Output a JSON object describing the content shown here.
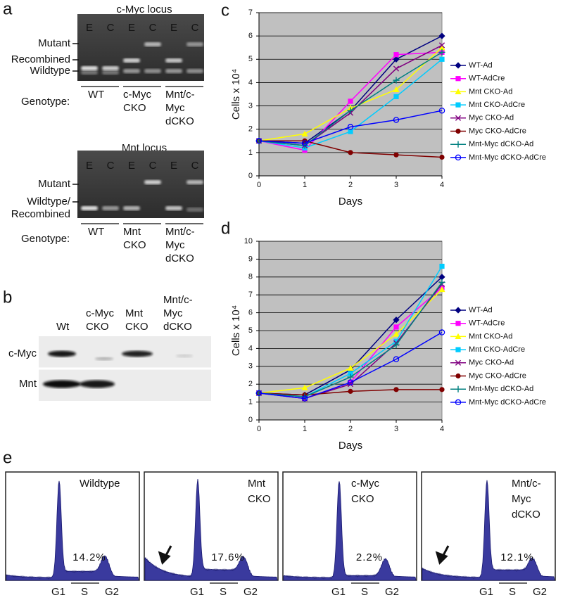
{
  "panel_labels": [
    "a",
    "b",
    "c",
    "d",
    "e"
  ],
  "panel_a": {
    "gels": [
      {
        "title": "c-Myc locus",
        "lanes": [
          "E",
          "C",
          "E",
          "C",
          "E",
          "C"
        ],
        "band_labels": [
          [
            "Mutant"
          ],
          [
            "Recombined"
          ],
          [
            "Wildtype"
          ]
        ],
        "genotype_label": "Genotype:",
        "genotypes": [
          [
            "WT"
          ],
          [
            "c-Myc",
            "CKO"
          ],
          [
            "Mnt/c-",
            "Myc",
            "dCKO"
          ]
        ]
      },
      {
        "title": "Mnt locus",
        "lanes": [
          "E",
          "C",
          "E",
          "C",
          "E",
          "C"
        ],
        "band_labels": [
          [
            "Mutant"
          ],
          [
            "Wildtype/",
            "Recombined"
          ]
        ],
        "genotype_label": "Genotype:",
        "genotypes": [
          [
            "WT"
          ],
          [
            "Mnt",
            "CKO"
          ],
          [
            "Mnt/c-",
            "Myc",
            "dCKO"
          ]
        ]
      }
    ]
  },
  "panel_b": {
    "lanes": [
      [
        "Wt"
      ],
      [
        "c-Myc",
        "CKO"
      ],
      [
        "Mnt",
        "CKO"
      ],
      [
        "Mnt/c-",
        "Myc",
        "dCKO"
      ]
    ],
    "rows": [
      "c-Myc",
      "Mnt"
    ]
  },
  "chart_data": [
    {
      "type": "line",
      "x_label": "Days",
      "y_label": "Cells x 10⁴",
      "x": [
        0,
        1,
        2,
        3,
        4
      ],
      "xlim": [
        0,
        4
      ],
      "xticks": [
        0,
        1,
        2,
        3,
        4
      ],
      "ylim": [
        0,
        7
      ],
      "yticks": [
        0,
        1,
        2,
        3,
        4,
        5,
        6,
        7
      ],
      "grid": true,
      "background": "#c0c0c0",
      "legend": "right",
      "series": [
        {
          "name": "WT-Ad",
          "color": "#000080",
          "marker": "diamond",
          "values": [
            1.5,
            1.4,
            2.8,
            5.0,
            6.0
          ]
        },
        {
          "name": "WT-AdCre",
          "color": "#ff00ff",
          "marker": "square",
          "values": [
            1.5,
            1.1,
            3.2,
            5.2,
            5.3
          ]
        },
        {
          "name": "Mnt CKO-Ad",
          "color": "#ffff00",
          "marker": "triangle",
          "values": [
            1.5,
            1.8,
            2.9,
            3.7,
            5.5
          ]
        },
        {
          "name": "Mnt CKO-AdCre",
          "color": "#00ccff",
          "marker": "square",
          "values": [
            1.5,
            1.2,
            1.9,
            3.4,
            5.0
          ]
        },
        {
          "name": "Myc CKO-Ad",
          "color": "#800080",
          "marker": "x",
          "values": [
            1.5,
            1.3,
            2.7,
            4.6,
            5.6
          ]
        },
        {
          "name": "Myc CKO-AdCre",
          "color": "#800000",
          "marker": "circle",
          "values": [
            1.5,
            1.5,
            1.0,
            0.9,
            0.8
          ]
        },
        {
          "name": "Mnt-Myc dCKO-Ad",
          "color": "#008080",
          "marker": "plus",
          "values": [
            1.5,
            1.3,
            2.8,
            4.1,
            5.3
          ]
        },
        {
          "name": "Mnt-Myc dCKO-AdCre",
          "color": "#0000ff",
          "marker": "open-circle",
          "values": [
            1.5,
            1.4,
            2.1,
            2.4,
            2.8
          ]
        }
      ]
    },
    {
      "type": "line",
      "x_label": "Days",
      "y_label": "Cells x 10⁴",
      "x": [
        0,
        1,
        2,
        3,
        4
      ],
      "xlim": [
        0,
        4
      ],
      "xticks": [
        0,
        1,
        2,
        3,
        4
      ],
      "ylim": [
        0,
        10
      ],
      "yticks": [
        0,
        1,
        2,
        3,
        4,
        5,
        6,
        7,
        8,
        9,
        10
      ],
      "grid": true,
      "background": "#c0c0c0",
      "legend": "right",
      "series": [
        {
          "name": "WT-Ad",
          "color": "#000080",
          "marker": "diamond",
          "values": [
            1.5,
            1.4,
            2.8,
            5.6,
            8.0
          ]
        },
        {
          "name": "WT-AdCre",
          "color": "#ff00ff",
          "marker": "square",
          "values": [
            1.5,
            1.2,
            2.1,
            5.2,
            7.4
          ]
        },
        {
          "name": "Mnt CKO-Ad",
          "color": "#ffff00",
          "marker": "triangle",
          "values": [
            1.5,
            1.8,
            2.9,
            4.8,
            7.3
          ]
        },
        {
          "name": "Mnt CKO-AdCre",
          "color": "#00ccff",
          "marker": "square",
          "values": [
            1.5,
            1.3,
            2.6,
            4.4,
            8.6
          ]
        },
        {
          "name": "Myc CKO-Ad",
          "color": "#800080",
          "marker": "x",
          "values": [
            1.5,
            1.2,
            2.0,
            4.3,
            7.6
          ]
        },
        {
          "name": "Myc CKO-AdCre",
          "color": "#800000",
          "marker": "circle",
          "values": [
            1.5,
            1.4,
            1.6,
            1.7,
            1.7
          ]
        },
        {
          "name": "Mnt-Myc dCKO-Ad",
          "color": "#008080",
          "marker": "plus",
          "values": [
            1.5,
            1.3,
            2.4,
            4.2,
            7.7
          ]
        },
        {
          "name": "Mnt-Myc dCKO-AdCre",
          "color": "#0000ff",
          "marker": "open-circle",
          "values": [
            1.5,
            1.2,
            2.1,
            3.4,
            4.9
          ]
        }
      ]
    }
  ],
  "panel_e": {
    "histograms": [
      {
        "label": [
          "Wildtype"
        ],
        "s_phase": "14.2%"
      },
      {
        "label": [
          "Mnt",
          "CKO"
        ],
        "s_phase": "17.6%"
      },
      {
        "label": [
          "c-Myc",
          "CKO"
        ],
        "s_phase": "2.2%"
      },
      {
        "label": [
          "Mnt/c-",
          "Myc",
          "dCKO"
        ],
        "s_phase": "12.1%"
      }
    ],
    "axis_labels": [
      "G1",
      "S",
      "G2"
    ]
  }
}
